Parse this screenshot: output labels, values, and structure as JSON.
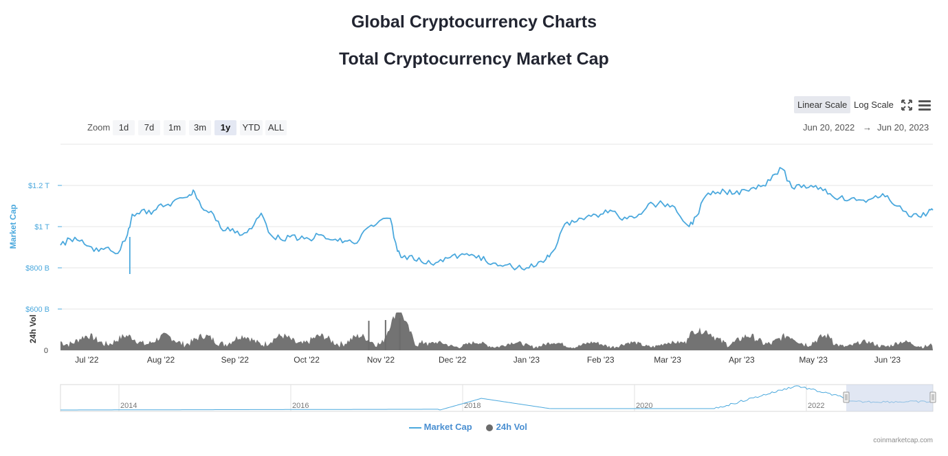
{
  "page": {
    "title": "Global Cryptocurrency Charts",
    "chart_title": "Total Cryptocurrency Market Cap",
    "credit": "coinmarketcap.com"
  },
  "controls": {
    "scales": [
      {
        "label": "Linear Scale",
        "active": true
      },
      {
        "label": "Log Scale",
        "active": false
      }
    ],
    "zoom_label": "Zoom",
    "zoom_buttons": [
      "1d",
      "7d",
      "1m",
      "3m",
      "1y",
      "YTD",
      "ALL"
    ],
    "zoom_active": "1y",
    "date_from": "Jun 20, 2022",
    "date_arrow": "→",
    "date_to": "Jun 20, 2023",
    "fullscreen_icon": "fullscreen-icon",
    "menu_icon": "hamburger-menu-icon"
  },
  "colors": {
    "market_cap": "#4aa8dd",
    "volume": "#6b6b6b",
    "navigator_mask": "#c9d3ea",
    "text": "#222531"
  },
  "chart_data": {
    "type": "line",
    "title": "Total Cryptocurrency Market Cap",
    "xlabel": "",
    "x_range": [
      "2022-06-20",
      "2023-06-20"
    ],
    "x_ticks": [
      "Jul '22",
      "Aug '22",
      "Sep '22",
      "Oct '22",
      "Nov '22",
      "Dec '22",
      "Jan '23",
      "Feb '23",
      "Mar '23",
      "Apr '23",
      "May '23",
      "Jun '23"
    ],
    "yaxis_market_cap": {
      "label": "Market Cap",
      "ticks": [
        "$600 B",
        "$800 B",
        "$1 T",
        "$1.2 T"
      ],
      "ylim_billions": [
        600,
        1400
      ],
      "color": "#4aa8dd"
    },
    "yaxis_volume": {
      "label": "24h Vol",
      "ticks": [
        "0"
      ]
    },
    "grid": true,
    "legend_position": "bottom-center",
    "series": [
      {
        "name": "Market Cap",
        "unit": "USD billions",
        "dates": [
          "2022-06-20",
          "2022-06-24",
          "2022-06-28",
          "2022-07-02",
          "2022-07-06",
          "2022-07-10",
          "2022-07-14",
          "2022-07-18",
          "2022-07-20",
          "2022-07-24",
          "2022-07-28",
          "2022-08-01",
          "2022-08-05",
          "2022-08-09",
          "2022-08-13",
          "2022-08-15",
          "2022-08-19",
          "2022-08-23",
          "2022-08-27",
          "2022-08-31",
          "2022-09-04",
          "2022-09-08",
          "2022-09-12",
          "2022-09-16",
          "2022-09-20",
          "2022-09-24",
          "2022-09-28",
          "2022-10-02",
          "2022-10-06",
          "2022-10-10",
          "2022-10-14",
          "2022-10-18",
          "2022-10-22",
          "2022-10-26",
          "2022-10-30",
          "2022-11-05",
          "2022-11-08",
          "2022-11-10",
          "2022-11-14",
          "2022-11-18",
          "2022-11-22",
          "2022-11-26",
          "2022-11-30",
          "2022-12-04",
          "2022-12-08",
          "2022-12-12",
          "2022-12-16",
          "2022-12-20",
          "2022-12-24",
          "2022-12-28",
          "2023-01-01",
          "2023-01-05",
          "2023-01-09",
          "2023-01-12",
          "2023-01-16",
          "2023-01-20",
          "2023-01-24",
          "2023-01-28",
          "2023-02-01",
          "2023-02-05",
          "2023-02-09",
          "2023-02-13",
          "2023-02-17",
          "2023-02-21",
          "2023-02-25",
          "2023-03-01",
          "2023-03-05",
          "2023-03-10",
          "2023-03-13",
          "2023-03-17",
          "2023-03-21",
          "2023-03-25",
          "2023-03-29",
          "2023-04-02",
          "2023-04-06",
          "2023-04-10",
          "2023-04-14",
          "2023-04-18",
          "2023-04-22",
          "2023-04-26",
          "2023-04-30",
          "2023-05-04",
          "2023-05-08",
          "2023-05-12",
          "2023-05-16",
          "2023-05-20",
          "2023-05-24",
          "2023-05-28",
          "2023-06-01",
          "2023-06-05",
          "2023-06-10",
          "2023-06-14",
          "2023-06-18",
          "2023-06-20"
        ],
        "values": [
          910,
          940,
          930,
          905,
          880,
          900,
          870,
          960,
          1060,
          1080,
          1060,
          1110,
          1100,
          1140,
          1155,
          1170,
          1080,
          1060,
          980,
          990,
          960,
          990,
          1065,
          960,
          940,
          950,
          940,
          940,
          960,
          940,
          930,
          930,
          920,
          990,
          1010,
          1040,
          880,
          850,
          860,
          830,
          820,
          840,
          850,
          860,
          860,
          860,
          820,
          810,
          815,
          800,
          800,
          810,
          840,
          880,
          990,
          1030,
          1040,
          1050,
          1060,
          1080,
          1040,
          1050,
          1060,
          1110,
          1110,
          1110,
          1070,
          1000,
          1050,
          1150,
          1160,
          1170,
          1160,
          1180,
          1190,
          1200,
          1250,
          1280,
          1190,
          1190,
          1200,
          1190,
          1160,
          1140,
          1130,
          1130,
          1130,
          1140,
          1150,
          1100,
          1050,
          1050,
          1070,
          1080
        ]
      },
      {
        "name": "24h Vol",
        "relative_volume_peaks": [
          {
            "date": "2022-10-27",
            "relative": 0.78
          },
          {
            "date": "2022-11-03",
            "relative": 0.8
          },
          {
            "date": "2022-11-09",
            "relative": 0.85
          }
        ]
      }
    ],
    "navigator": {
      "ticks": [
        "2014",
        "2016",
        "2018",
        "2020",
        "2022"
      ],
      "selected_range": [
        "2022-06-20",
        "2023-06-20"
      ]
    }
  }
}
